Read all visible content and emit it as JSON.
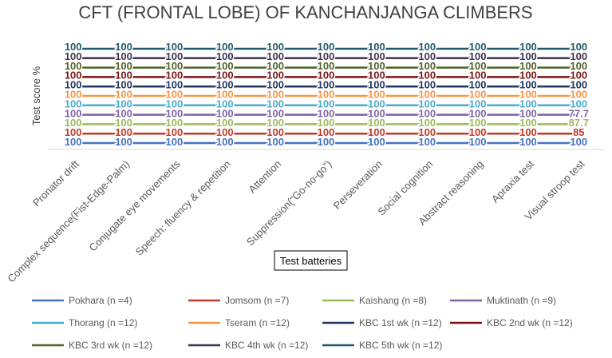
{
  "chart_data": {
    "type": "line",
    "title": "CFT (FRONTAL LOBE) OF KANCHANJANGA CLIMBERS",
    "xlabel": "Test batteries",
    "ylabel": "Test score %",
    "categories": [
      "Pronator drift",
      "Complex sequence(Fist-Edge-Palm)",
      "Conjugate eye movements",
      "Speech: fluency & repetition",
      "Attention",
      "Suppression(“Go-no-go”)",
      "Perseveration",
      "Social cognition",
      "Abstract reasoning",
      "Apraxia test",
      "Visual stroop test"
    ],
    "series": [
      {
        "name": "Pokhara (n =4)",
        "color": "#4472c4",
        "values": [
          100,
          100,
          100,
          100,
          100,
          100,
          100,
          100,
          100,
          100,
          100
        ],
        "labels": [
          "100",
          "100",
          "100",
          "100",
          "100",
          "100",
          "100",
          "100",
          "100",
          "100",
          "100"
        ]
      },
      {
        "name": "Jomsom (n =7)",
        "color": "#c0392b",
        "values": [
          100,
          100,
          100,
          100,
          100,
          100,
          100,
          100,
          100,
          100,
          85
        ],
        "labels": [
          "100",
          "100",
          "100",
          "100",
          "100",
          "100",
          "100",
          "100",
          "100",
          "100",
          "85"
        ]
      },
      {
        "name": "Kaishang (n =8)",
        "color": "#9bbb59",
        "values": [
          100,
          100,
          100,
          100,
          100,
          100,
          100,
          100,
          100,
          100,
          87.7
        ],
        "labels": [
          "100",
          "100",
          "100",
          "100",
          "100",
          "100",
          "100",
          "100",
          "100",
          "100",
          "87.7"
        ]
      },
      {
        "name": "Muktinath (n =9)",
        "color": "#8064a2",
        "values": [
          100,
          100,
          100,
          100,
          100,
          100,
          100,
          100,
          100,
          100,
          77.7
        ],
        "labels": [
          "100",
          "100",
          "100",
          "100",
          "100",
          "100",
          "100",
          "100",
          "100",
          "100",
          "77.7"
        ]
      },
      {
        "name": "Thorang (n =12)",
        "color": "#4bacc6",
        "values": [
          100,
          100,
          100,
          100,
          100,
          100,
          100,
          100,
          100,
          100,
          100
        ],
        "labels": [
          "100",
          "100",
          "100",
          "100",
          "100",
          "100",
          "100",
          "100",
          "100",
          "100",
          "100"
        ]
      },
      {
        "name": "Tseram (n =12)",
        "color": "#f79646",
        "values": [
          100,
          100,
          100,
          100,
          100,
          100,
          100,
          100,
          100,
          100,
          100
        ],
        "labels": [
          "100",
          "100",
          "100",
          "100",
          "100",
          "100",
          "100",
          "100",
          "100",
          "100",
          "100"
        ]
      },
      {
        "name": "KBC 1st wk (n =12)",
        "color": "#1f3864",
        "values": [
          100,
          100,
          100,
          100,
          100,
          100,
          100,
          100,
          100,
          100,
          100
        ],
        "labels": [
          "100",
          "100",
          "100",
          "100",
          "100",
          "100",
          "100",
          "100",
          "100",
          "100",
          "100"
        ]
      },
      {
        "name": "KBC 2nd wk (n =12)",
        "color": "#7b1414",
        "values": [
          100,
          100,
          100,
          100,
          100,
          100,
          100,
          100,
          100,
          100,
          100
        ],
        "labels": [
          "100",
          "100",
          "100",
          "100",
          "100",
          "100",
          "100",
          "100",
          "100",
          "100",
          "100"
        ]
      },
      {
        "name": "KBC 3rd wk (n =12)",
        "color": "#4f6228",
        "values": [
          100,
          100,
          100,
          100,
          100,
          100,
          100,
          100,
          100,
          100,
          100
        ],
        "labels": [
          "100",
          "100",
          "100",
          "100",
          "100",
          "100",
          "100",
          "100",
          "100",
          "100",
          "100"
        ]
      },
      {
        "name": "KBC  4th wk (n =12)",
        "color": "#3f3151",
        "values": [
          100,
          100,
          100,
          100,
          100,
          100,
          100,
          100,
          100,
          100,
          100
        ],
        "labels": [
          "100",
          "100",
          "100",
          "100",
          "100",
          "100",
          "100",
          "100",
          "100",
          "100",
          "100"
        ]
      },
      {
        "name": "KBC 5th wk (n =12)",
        "color": "#215968",
        "values": [
          100,
          100,
          100,
          100,
          100,
          100,
          100,
          100,
          100,
          100,
          100
        ],
        "labels": [
          "100",
          "100",
          "100",
          "100",
          "100",
          "100",
          "100",
          "100",
          "100",
          "100",
          "100"
        ]
      }
    ]
  }
}
